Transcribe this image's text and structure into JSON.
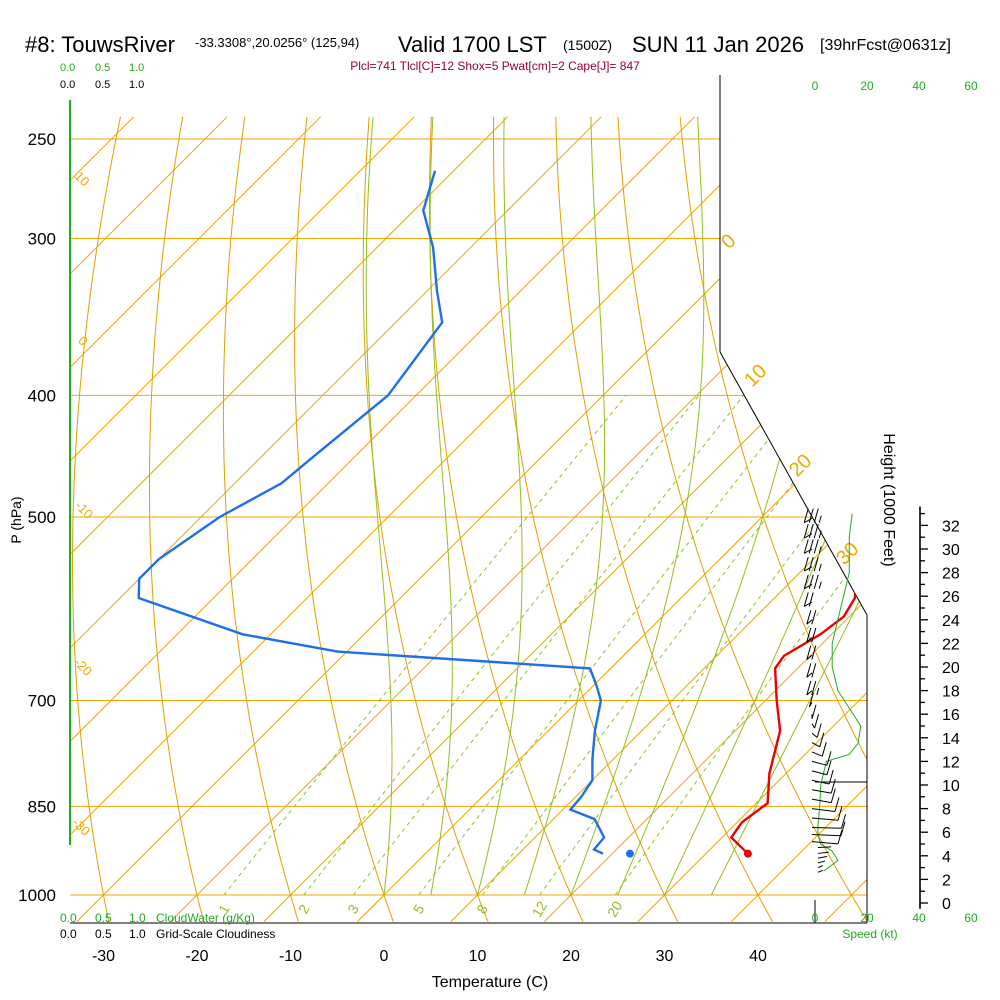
{
  "colors": {
    "isotherm": "#f0a800",
    "dry_adiabat": "#e0a000",
    "moist_adiabat": "#90c020",
    "mixing_ratio": "#90c020",
    "temperature": "#ee0000",
    "dewpoint": "#1f6fe6",
    "parcel": "#7a0050",
    "wind_speed": "#22aa22",
    "stats": "#990033",
    "green_label": "#22aa22"
  },
  "header": {
    "title": "#8: TouwsRiver",
    "coords": "-33.3308°,20.0256° (125,94)",
    "valid": "Valid 1700 LST",
    "utc": "(1500Z)",
    "date": "SUN 11 Jan 2026",
    "forecast": "[39hrFcst@0631z]",
    "stats": "Plcl=741 Tlcl[C]=12 Shox=5 Pwat[cm]=2 Cape[J]= 847"
  },
  "scales": {
    "cloud_top": [
      "0.0",
      "0.5",
      "1.0"
    ],
    "cloudiness_top": [
      "0.0",
      "0.5",
      "1.0"
    ],
    "cloud_bottom": [
      "0.0",
      "0.5",
      "1.0"
    ],
    "cloud_bottom_label": "CloudWater (g/Kg)",
    "cloudiness_bottom": [
      "0.0",
      "0.5",
      "1.0"
    ],
    "cloudiness_bottom_label": "Grid-Scale Cloudiness",
    "speed_ticks": [
      "0",
      "20",
      "40",
      "60"
    ],
    "speed_label": "Speed (kt)"
  },
  "chart_data": {
    "type": "skew-t",
    "xlabel": "Temperature (C)",
    "ylabel": "P (hPa)",
    "y2label": "Height (1000 Feet)",
    "temperature_ticks": [
      -30,
      -20,
      -10,
      0,
      10,
      20,
      30,
      40
    ],
    "pressure_ticks": [
      250,
      300,
      400,
      500,
      700,
      850,
      1000
    ],
    "height_ticks": [
      0,
      2,
      4,
      6,
      8,
      10,
      12,
      14,
      16,
      18,
      20,
      22,
      24,
      26,
      28,
      30,
      32
    ],
    "isotherm_labels": [
      {
        "temp": 0,
        "text": "0"
      },
      {
        "temp": 10,
        "text": "10"
      },
      {
        "temp": 20,
        "text": "20"
      },
      {
        "temp": 30,
        "text": "30"
      }
    ],
    "adiabat_labels": [
      "10",
      "0",
      "-10",
      "-20",
      "-30"
    ],
    "mixing_ratio_labels": [
      "1",
      "2",
      "3",
      "5",
      "8",
      "12",
      "20"
    ],
    "temperature_profile": [
      {
        "p": 927,
        "t": 34.5
      },
      {
        "p": 900,
        "t": 31.0
      },
      {
        "p": 875,
        "t": 30.5
      },
      {
        "p": 845,
        "t": 31.2
      },
      {
        "p": 800,
        "t": 28.2
      },
      {
        "p": 740,
        "t": 24.8
      },
      {
        "p": 700,
        "t": 21.2
      },
      {
        "p": 660,
        "t": 17.6
      },
      {
        "p": 645,
        "t": 17.2
      },
      {
        "p": 620,
        "t": 18.8
      },
      {
        "p": 600,
        "t": 19.4
      },
      {
        "p": 580,
        "t": 18.6
      },
      {
        "p": 520,
        "t": 12.6
      },
      {
        "p": 490,
        "t": 9.4
      },
      {
        "p": 450,
        "t": 3.8
      },
      {
        "p": 400,
        "t": -3.8
      },
      {
        "p": 350,
        "t": -12.2
      },
      {
        "p": 300,
        "t": -22.0
      },
      {
        "p": 265,
        "t": -30.2
      }
    ],
    "dewpoint_profile": [
      {
        "p": 927,
        "t": 19.0
      },
      {
        "p": 920,
        "t": 17.6
      },
      {
        "p": 900,
        "t": 17.4
      },
      {
        "p": 870,
        "t": 14.4
      },
      {
        "p": 855,
        "t": 10.8
      },
      {
        "p": 835,
        "t": 10.6
      },
      {
        "p": 810,
        "t": 10.0
      },
      {
        "p": 780,
        "t": 7.8
      },
      {
        "p": 740,
        "t": 5.0
      },
      {
        "p": 700,
        "t": 2.4
      },
      {
        "p": 680,
        "t": 0.2
      },
      {
        "p": 660,
        "t": -2.2
      },
      {
        "p": 640,
        "t": -31.0
      },
      {
        "p": 620,
        "t": -43.0
      },
      {
        "p": 580,
        "t": -58.0
      },
      {
        "p": 560,
        "t": -60.0
      },
      {
        "p": 540,
        "t": -60.0
      },
      {
        "p": 500,
        "t": -58.0
      },
      {
        "p": 470,
        "t": -55.0
      },
      {
        "p": 450,
        "t": -54.5
      },
      {
        "p": 400,
        "t": -53.0
      },
      {
        "p": 350,
        "t": -55.0
      },
      {
        "p": 330,
        "t": -59.0
      },
      {
        "p": 305,
        "t": -64.0
      },
      {
        "p": 285,
        "t": -69.0
      },
      {
        "p": 265,
        "t": -72.0
      }
    ],
    "parcel_profile": [
      {
        "p": 500,
        "t": 14.8
      },
      {
        "p": 450,
        "t": 9.0
      },
      {
        "p": 400,
        "t": 1.2
      },
      {
        "p": 350,
        "t": -7.4
      },
      {
        "p": 300,
        "t": -17.8
      },
      {
        "p": 270,
        "t": -25.0
      }
    ],
    "surface_temperature": 34.5,
    "surface_dewpoint": 19.0,
    "wind_speed_profile": [
      {
        "height": 2.7,
        "speed": 1.5
      },
      {
        "height": 3.6,
        "speed": 4.0
      },
      {
        "height": 4.4,
        "speed": 3.0
      },
      {
        "height": 5.0,
        "speed": 1.0
      },
      {
        "height": 5.8,
        "speed": 0.5
      },
      {
        "height": 6.5,
        "speed": 0.5
      },
      {
        "height": 8.0,
        "speed": 0.8
      },
      {
        "height": 10.0,
        "speed": 1.0
      },
      {
        "height": 12.0,
        "speed": 2.0
      },
      {
        "height": 12.6,
        "speed": 6.0
      },
      {
        "height": 13.5,
        "speed": 7.5
      },
      {
        "height": 15.0,
        "speed": 8.0
      },
      {
        "height": 18.0,
        "speed": 4.0
      },
      {
        "height": 20.0,
        "speed": 3.0
      },
      {
        "height": 22.0,
        "speed": 3.0
      },
      {
        "height": 25.0,
        "speed": 4.5
      },
      {
        "height": 28.0,
        "speed": 6.0
      },
      {
        "height": 31.0,
        "speed": 6.0
      },
      {
        "height": 33.0,
        "speed": 6.5
      }
    ],
    "wind_barbs": [
      {
        "height": 2.6,
        "speed": 3,
        "dir": 160
      },
      {
        "height": 3.0,
        "speed": 4,
        "dir": 160
      },
      {
        "height": 3.4,
        "speed": 4,
        "dir": 150
      },
      {
        "height": 3.8,
        "speed": 4,
        "dir": 140
      },
      {
        "height": 4.2,
        "speed": 3,
        "dir": 130
      },
      {
        "height": 4.7,
        "speed": 2,
        "dir": 110
      },
      {
        "height": 5.2,
        "speed": 10,
        "dir": 60
      },
      {
        "height": 5.8,
        "speed": 10,
        "dir": 75
      },
      {
        "height": 6.4,
        "speed": 10,
        "dir": 80
      },
      {
        "height": 7.2,
        "speed": 10,
        "dir": 60
      },
      {
        "height": 8.0,
        "speed": 10,
        "dir": 50
      },
      {
        "height": 8.8,
        "speed": 10,
        "dir": 40
      },
      {
        "height": 9.6,
        "speed": 10,
        "dir": 40
      },
      {
        "height": 10.4,
        "speed": 10,
        "dir": 35
      },
      {
        "height": 11.2,
        "speed": 10,
        "dir": 30
      },
      {
        "height": 12.0,
        "speed": 10,
        "dir": 30
      },
      {
        "height": 12.8,
        "speed": 10,
        "dir": 20
      },
      {
        "height": 13.6,
        "speed": 10,
        "dir": 15
      },
      {
        "height": 14.4,
        "speed": 10,
        "dir": 10
      },
      {
        "height": 15.2,
        "speed": 10,
        "dir": 5
      },
      {
        "height": 16.0,
        "speed": 10,
        "dir": 0
      },
      {
        "height": 17.0,
        "speed": 10,
        "dir": 355
      },
      {
        "height": 18.0,
        "speed": 15,
        "dir": 350
      },
      {
        "height": 19.5,
        "speed": 20,
        "dir": 350
      },
      {
        "height": 21.0,
        "speed": 20,
        "dir": 350
      },
      {
        "height": 22.5,
        "speed": 20,
        "dir": 350
      },
      {
        "height": 24.0,
        "speed": 20,
        "dir": 350
      },
      {
        "height": 25.5,
        "speed": 20,
        "dir": 345
      },
      {
        "height": 27.0,
        "speed": 25,
        "dir": 345
      },
      {
        "height": 28.5,
        "speed": 25,
        "dir": 345
      },
      {
        "height": 30.0,
        "speed": 25,
        "dir": 345
      },
      {
        "height": 31.3,
        "speed": 25,
        "dir": 345
      },
      {
        "height": 32.6,
        "speed": 25,
        "dir": 345
      }
    ]
  }
}
